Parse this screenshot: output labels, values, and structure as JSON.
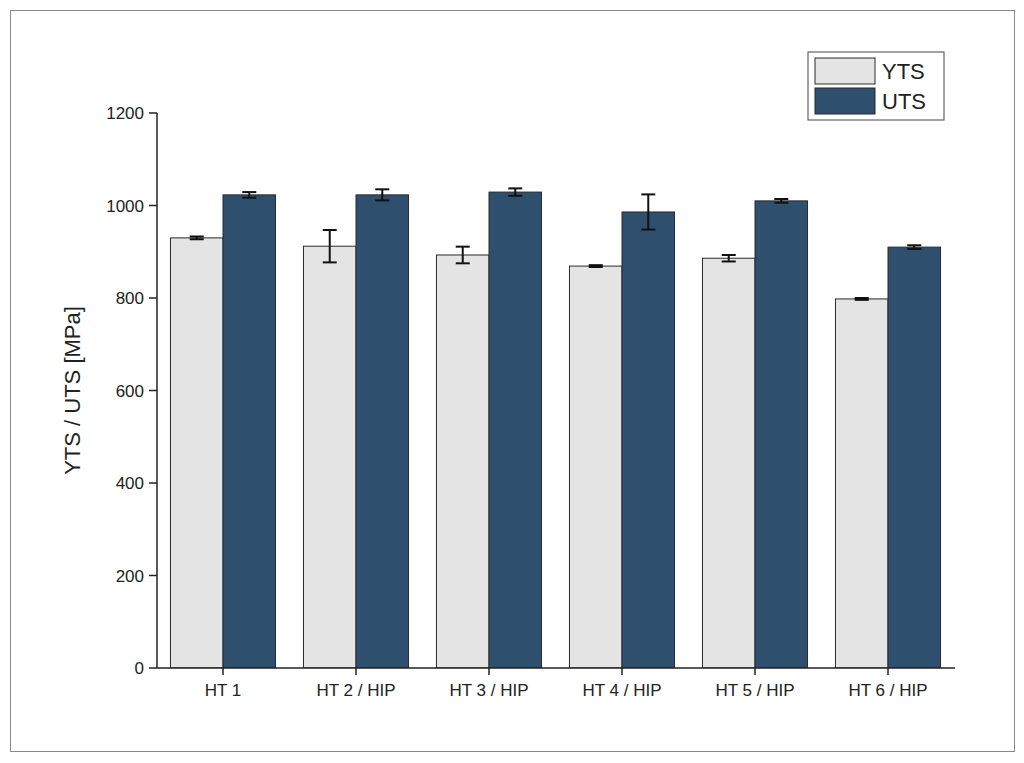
{
  "chart_data": {
    "type": "bar",
    "y_label": "YTS / UTS [MPa]",
    "categories": [
      "HT 1",
      "HT 2 / HIP",
      "HT 3 / HIP",
      "HT 4 / HIP",
      "HT 5 / HIP",
      "HT 6 / HIP"
    ],
    "series": [
      {
        "name": "YTS",
        "color": "#e4e4e4",
        "values": [
          930,
          912,
          893,
          869,
          886,
          798
        ],
        "errors": [
          3,
          35,
          18,
          2,
          7,
          2
        ]
      },
      {
        "name": "UTS",
        "color": "#2e4f6e",
        "values": [
          1023,
          1023,
          1029,
          986,
          1010,
          910
        ],
        "errors": [
          6,
          12,
          8,
          38,
          4,
          4
        ]
      }
    ],
    "ylim": [
      0,
      1200
    ],
    "yticks": [
      0,
      200,
      400,
      600,
      800,
      1000,
      1200
    ],
    "grid": false,
    "legend": "top-right"
  }
}
